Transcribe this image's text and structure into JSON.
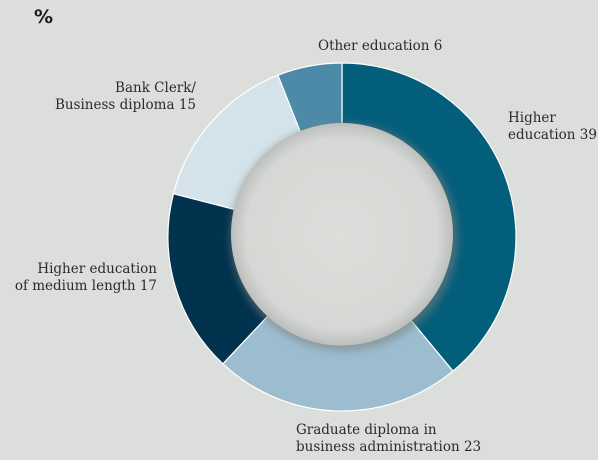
{
  "unit_label": "%",
  "chart_data": {
    "type": "pie",
    "donut": true,
    "title": "",
    "legend": "none",
    "slices": [
      {
        "label_lines": [
          "Higher",
          "education 39"
        ],
        "value": 39,
        "color": "#035e7b"
      },
      {
        "label_lines": [
          "Graduate diploma in",
          "business administration 23"
        ],
        "value": 23,
        "color": "#9bbdcf"
      },
      {
        "label_lines": [
          "Higher education",
          "of medium length 17"
        ],
        "value": 17,
        "color": "#01324e"
      },
      {
        "label_lines": [
          "Bank Clerk/",
          "Business diploma 15"
        ],
        "value": 15,
        "color": "#d4e2ea"
      },
      {
        "label_lines": [
          "Other education 6"
        ],
        "value": 6,
        "color": "#4c8aa7"
      }
    ]
  }
}
